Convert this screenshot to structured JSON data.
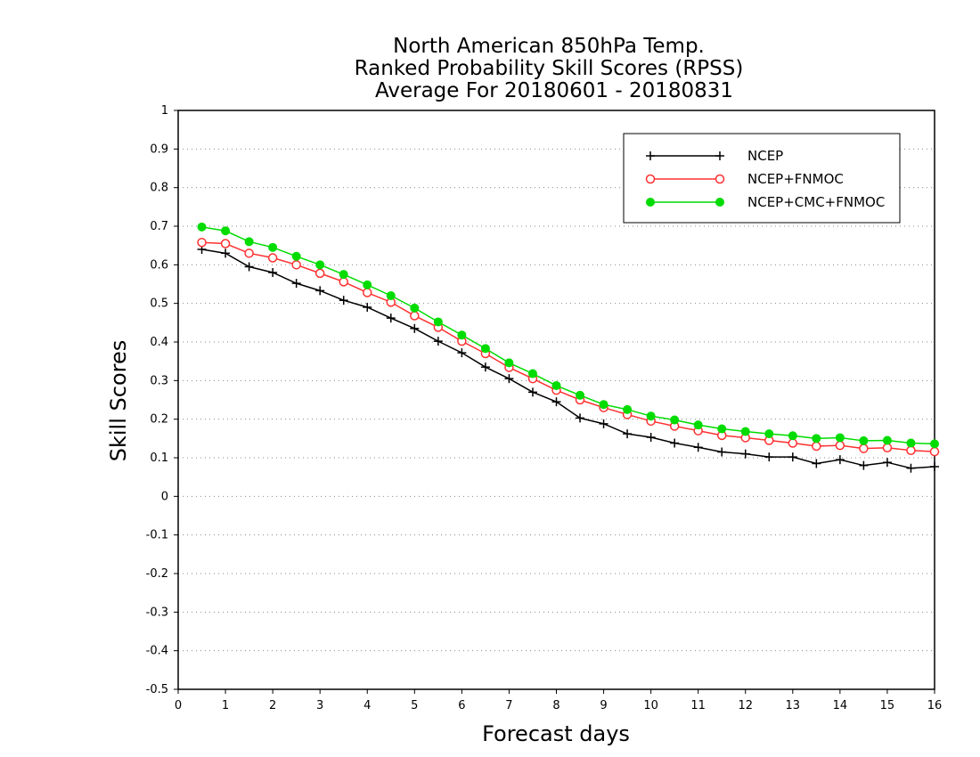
{
  "chart_data": {
    "type": "line",
    "title_lines": [
      "North American 850hPa Temp.",
      "Ranked Probability Skill Scores (RPSS)",
      "Average For 20180601 - 20180831"
    ],
    "xlabel": "Forecast days",
    "ylabel": "Skill Scores",
    "xlim": [
      0,
      16
    ],
    "ylim": [
      -0.5,
      1
    ],
    "x_ticks": [
      "0",
      "1",
      "2",
      "3",
      "4",
      "5",
      "6",
      "7",
      "8",
      "9",
      "10",
      "11",
      "12",
      "13",
      "14",
      "15",
      "16"
    ],
    "y_ticks": [
      "-0.5",
      "-0.4",
      "-0.3",
      "-0.2",
      "-0.1",
      "0",
      "0.1",
      "0.2",
      "0.3",
      "0.4",
      "0.5",
      "0.6",
      "0.7",
      "0.8",
      "0.9",
      "1"
    ],
    "grid": "horizontal dotted",
    "legend_position": "top-right",
    "x": [
      0.5,
      1,
      1.5,
      2,
      2.5,
      3,
      3.5,
      4,
      4.5,
      5,
      5.5,
      6,
      6.5,
      7,
      7.5,
      8,
      8.5,
      9,
      9.5,
      10,
      10.5,
      11,
      11.5,
      12,
      12.5,
      13,
      13.5,
      14,
      14.5,
      15,
      15.5,
      16
    ],
    "series": [
      {
        "name": "NCEP",
        "color": "#000000",
        "marker": "plus",
        "values": [
          0.64,
          0.63,
          0.595,
          0.58,
          0.552,
          0.533,
          0.508,
          0.49,
          0.462,
          0.435,
          0.402,
          0.372,
          0.335,
          0.305,
          0.27,
          0.245,
          0.203,
          0.188,
          0.162,
          0.153,
          0.138,
          0.127,
          0.115,
          0.11,
          0.102,
          0.102,
          0.085,
          0.095,
          0.08,
          0.088,
          0.073,
          0.077
        ]
      },
      {
        "name": "NCEP+FNMOC",
        "color": "#ff3030",
        "marker": "open-circle",
        "values": [
          0.658,
          0.655,
          0.63,
          0.618,
          0.6,
          0.578,
          0.556,
          0.528,
          0.503,
          0.468,
          0.438,
          0.402,
          0.37,
          0.334,
          0.305,
          0.275,
          0.25,
          0.23,
          0.212,
          0.195,
          0.182,
          0.17,
          0.158,
          0.152,
          0.145,
          0.138,
          0.13,
          0.132,
          0.124,
          0.126,
          0.119,
          0.116
        ]
      },
      {
        "name": "NCEP+CMC+FNMOC",
        "color": "#00dc00",
        "marker": "filled-circle",
        "values": [
          0.698,
          0.688,
          0.66,
          0.645,
          0.622,
          0.6,
          0.575,
          0.548,
          0.52,
          0.488,
          0.452,
          0.418,
          0.383,
          0.346,
          0.318,
          0.287,
          0.262,
          0.238,
          0.225,
          0.208,
          0.198,
          0.185,
          0.175,
          0.168,
          0.162,
          0.157,
          0.15,
          0.152,
          0.144,
          0.145,
          0.138,
          0.136
        ]
      }
    ]
  }
}
